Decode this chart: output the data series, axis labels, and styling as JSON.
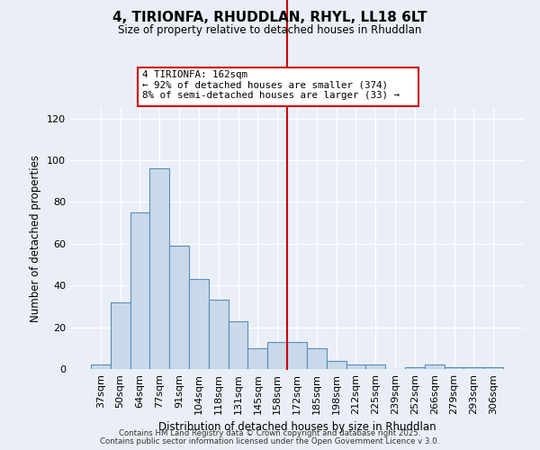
{
  "title": "4, TIRIONFA, RHUDDLAN, RHYL, LL18 6LT",
  "subtitle": "Size of property relative to detached houses in Rhuddlan",
  "xlabel": "Distribution of detached houses by size in Rhuddlan",
  "ylabel": "Number of detached properties",
  "bar_color": "#c9d9ea",
  "bar_edge_color": "#5b8db8",
  "background_color": "#eaeff7",
  "grid_color": "#ffffff",
  "categories": [
    "37sqm",
    "50sqm",
    "64sqm",
    "77sqm",
    "91sqm",
    "104sqm",
    "118sqm",
    "131sqm",
    "145sqm",
    "158sqm",
    "172sqm",
    "185sqm",
    "198sqm",
    "212sqm",
    "225sqm",
    "239sqm",
    "252sqm",
    "266sqm",
    "279sqm",
    "293sqm",
    "306sqm"
  ],
  "values": [
    2,
    32,
    75,
    96,
    59,
    43,
    33,
    23,
    10,
    13,
    13,
    10,
    4,
    2,
    2,
    0,
    1,
    2,
    1,
    1,
    1
  ],
  "vline_x": 9.5,
  "vline_color": "#cc0000",
  "annotation_title": "4 TIRIONFA: 162sqm",
  "annotation_line1": "← 92% of detached houses are smaller (374)",
  "annotation_line2": "8% of semi-detached houses are larger (33) →",
  "annotation_box_color": "#cc0000",
  "ylim": [
    0,
    125
  ],
  "yticks": [
    0,
    20,
    40,
    60,
    80,
    100,
    120
  ],
  "footnote1": "Contains HM Land Registry data © Crown copyright and database right 2025.",
  "footnote2": "Contains public sector information licensed under the Open Government Licence v 3.0."
}
